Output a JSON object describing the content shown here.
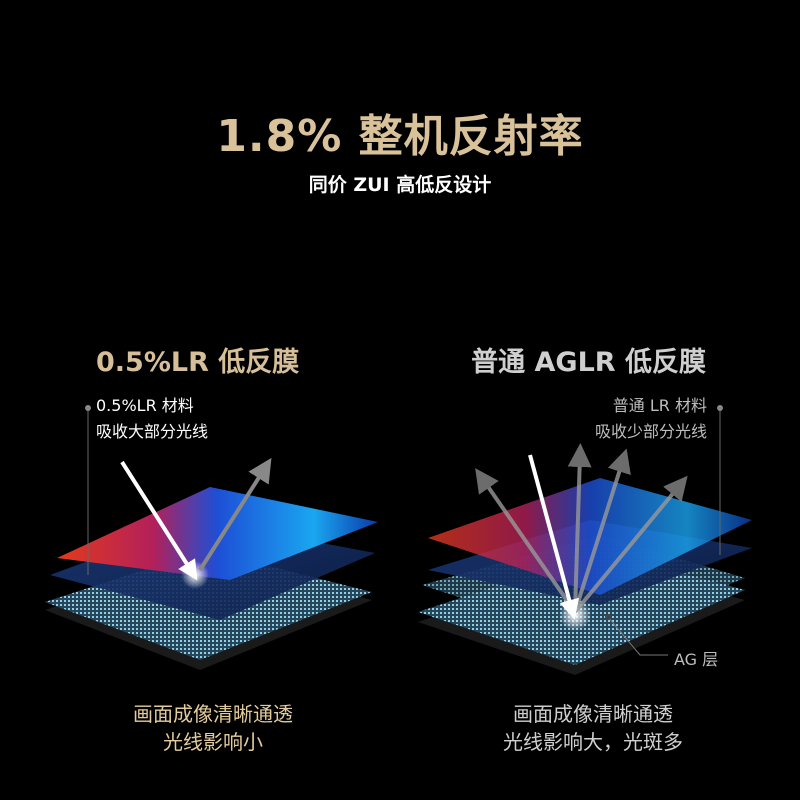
{
  "header": {
    "title": "1.8% 整机反射率",
    "subtitle": "同价 ZUI 高低反设计"
  },
  "left": {
    "heading": "0.5%LR 低反膜",
    "note_lines": [
      "0.5%LR 材料",
      "吸收大部分光线"
    ],
    "footer_lines": [
      "画面成像清晰通透",
      "光线影响小"
    ],
    "accent": "#d6bf98"
  },
  "right": {
    "heading": "普通 AGLR 低反膜",
    "note_lines": [
      "普通 LR 材料",
      "吸收少部分光线"
    ],
    "footer_lines": [
      "画面成像清晰通透",
      "光线影响大，光斑多"
    ],
    "layer_label": "AG 层",
    "accent": "#cfcfcf"
  }
}
